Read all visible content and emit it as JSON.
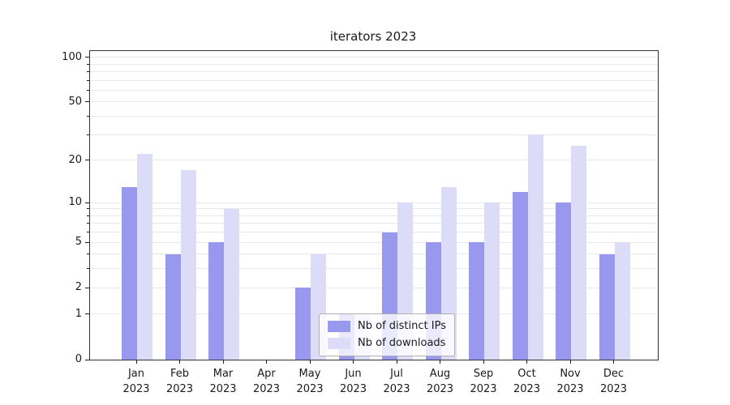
{
  "title": "iterators 2023",
  "chart_data": {
    "type": "bar",
    "title": "iterators 2023",
    "categories": [
      "Jan 2023",
      "Feb 2023",
      "Mar 2023",
      "Apr 2023",
      "May 2023",
      "Jun 2023",
      "Jul 2023",
      "Aug 2023",
      "Sep 2023",
      "Oct 2023",
      "Nov 2023",
      "Dec 2023"
    ],
    "months": [
      "Jan",
      "Feb",
      "Mar",
      "Apr",
      "May",
      "Jun",
      "Jul",
      "Aug",
      "Sep",
      "Oct",
      "Nov",
      "Dec"
    ],
    "year": "2023",
    "series": [
      {
        "name": "Nb of distinct IPs",
        "color": "#9898ee",
        "values": [
          13,
          4,
          5,
          0,
          2,
          1,
          6,
          5,
          5,
          12,
          10,
          4
        ]
      },
      {
        "name": "Nb of downloads",
        "color": "#dcdcf9",
        "values": [
          22,
          17,
          9,
          0,
          4,
          1,
          10,
          13,
          10,
          30,
          25,
          5
        ]
      }
    ],
    "xlabel": "",
    "ylabel": "",
    "yscale": "log1p",
    "ylim": [
      0,
      110
    ],
    "y_ticks": [
      0,
      1,
      2,
      5,
      10,
      20,
      50,
      100
    ],
    "y_minor_ticks": [
      3,
      4,
      6,
      7,
      8,
      9,
      30,
      40,
      60,
      70,
      80,
      90
    ],
    "gridline_values": [
      1,
      2,
      3,
      4,
      5,
      6,
      7,
      8,
      9,
      10,
      20,
      30,
      40,
      50,
      60,
      70,
      80,
      90,
      100
    ],
    "grid_on": true,
    "grid_color": "#e8e8e8",
    "axis_color": "#1a1a1a",
    "legend_position": "lower center"
  }
}
